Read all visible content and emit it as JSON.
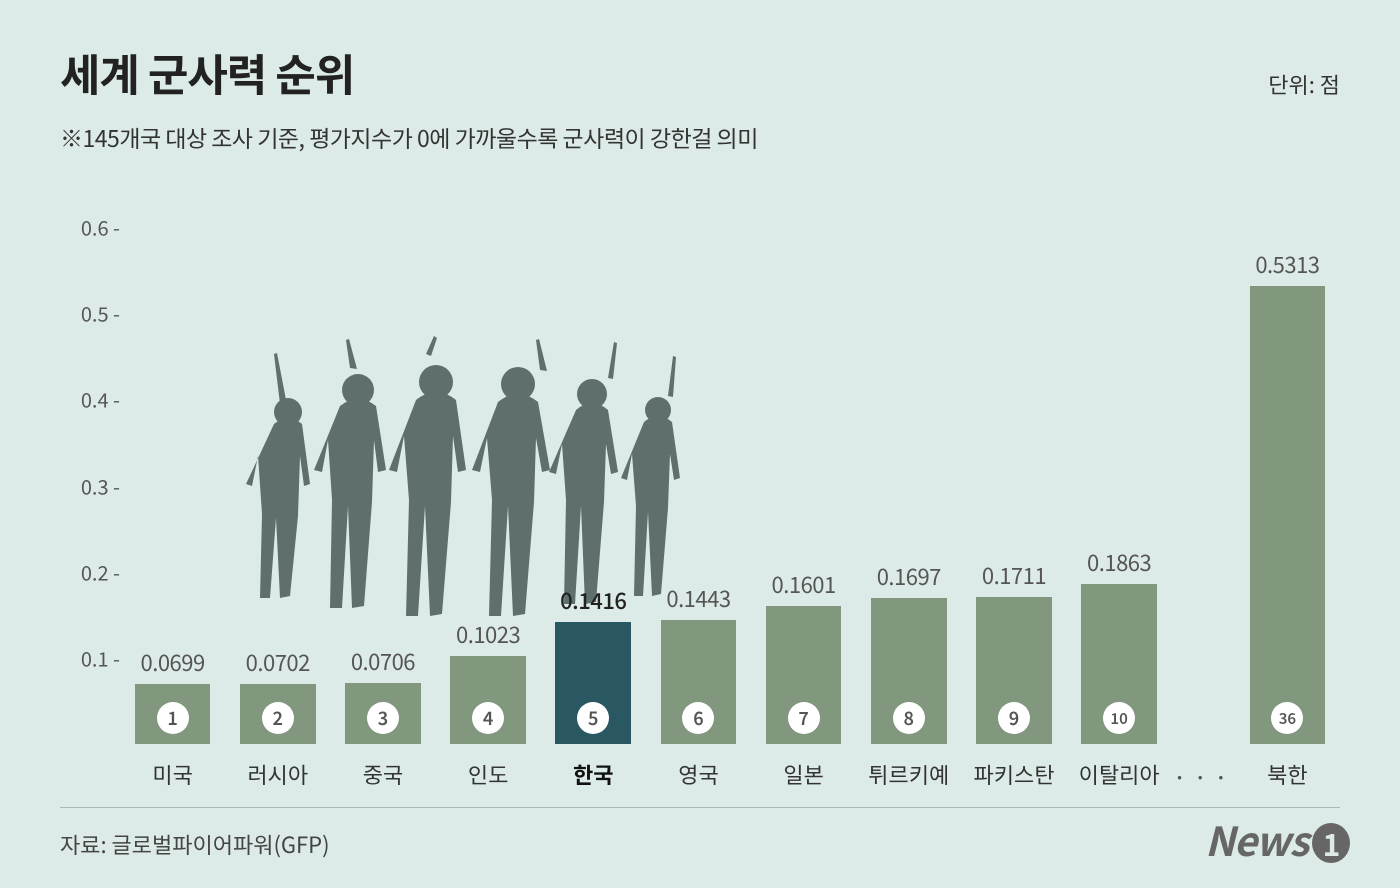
{
  "title": "세계 군사력 순위",
  "unit_label": "단위: 점",
  "subtitle": "※145개국 대상 조사 기준, 평가지수가 0에 가까울수록 군사력이 강한걸 의미",
  "source_label": "자료: 글로벌파이어파워(GFP)",
  "logo_text": "News",
  "logo_digit": "1",
  "chart": {
    "type": "bar",
    "ylim": [
      0,
      0.65
    ],
    "yticks": [
      0.1,
      0.2,
      0.3,
      0.4,
      0.5,
      0.6
    ],
    "ytick_suffix": " -",
    "background_color": "#dcebe8",
    "bar_color_default": "#81977e",
    "bar_color_highlight": "#2a5862",
    "value_color": "#555555",
    "label_fontsize": 22,
    "value_fontsize": 22,
    "title_fontsize": 44,
    "has_ellipsis_before_index": 10,
    "ellipsis": "···",
    "bars": [
      {
        "country": "미국",
        "rank": "1",
        "value": 0.0699,
        "value_label": "0.0699",
        "highlight": false
      },
      {
        "country": "러시아",
        "rank": "2",
        "value": 0.0702,
        "value_label": "0.0702",
        "highlight": false
      },
      {
        "country": "중국",
        "rank": "3",
        "value": 0.0706,
        "value_label": "0.0706",
        "highlight": false
      },
      {
        "country": "인도",
        "rank": "4",
        "value": 0.1023,
        "value_label": "0.1023",
        "highlight": false
      },
      {
        "country": "한국",
        "rank": "5",
        "value": 0.1416,
        "value_label": "0.1416",
        "highlight": true
      },
      {
        "country": "영국",
        "rank": "6",
        "value": 0.1443,
        "value_label": "0.1443",
        "highlight": false
      },
      {
        "country": "일본",
        "rank": "7",
        "value": 0.1601,
        "value_label": "0.1601",
        "highlight": false
      },
      {
        "country": "튀르키예",
        "rank": "8",
        "value": 0.1697,
        "value_label": "0.1697",
        "highlight": false
      },
      {
        "country": "파키스탄",
        "rank": "9",
        "value": 0.1711,
        "value_label": "0.1711",
        "highlight": false
      },
      {
        "country": "이탈리아",
        "rank": "10",
        "value": 0.1863,
        "value_label": "0.1863",
        "highlight": false
      },
      {
        "country": "북한",
        "rank": "36",
        "value": 0.5313,
        "value_label": "0.5313",
        "highlight": false
      }
    ]
  },
  "soldiers_silhouette_color": "#4a5a57"
}
